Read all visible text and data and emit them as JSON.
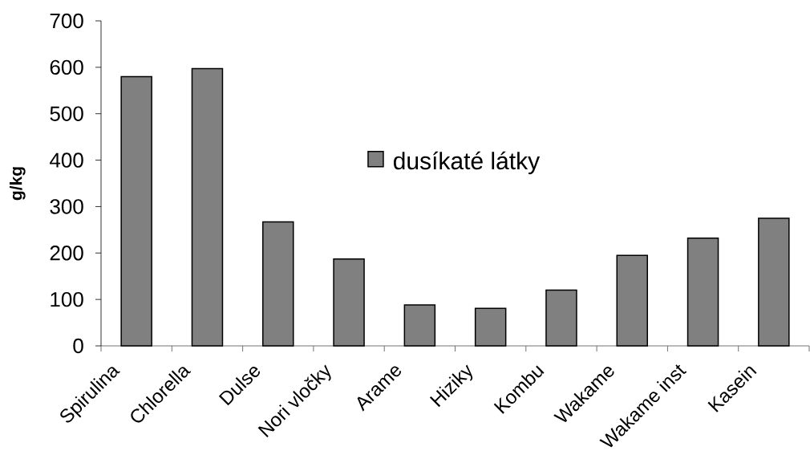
{
  "chart_data": {
    "type": "bar",
    "ylabel": "g/kg",
    "categories": [
      "Spirulina",
      "Chlorella",
      "Dulse",
      "Nori vločky",
      "Arame",
      "Hiziky",
      "Kombu",
      "Wakame",
      "Wakame inst",
      "Kasein"
    ],
    "series": [
      {
        "name": "dusíkaté látky",
        "color": "#808080",
        "values": [
          580,
          597,
          267,
          187,
          88,
          81,
          120,
          195,
          232,
          275
        ]
      }
    ],
    "ylim": [
      0,
      700
    ],
    "yticks": [
      0,
      100,
      200,
      300,
      400,
      500,
      600,
      700
    ],
    "legend": "center"
  }
}
